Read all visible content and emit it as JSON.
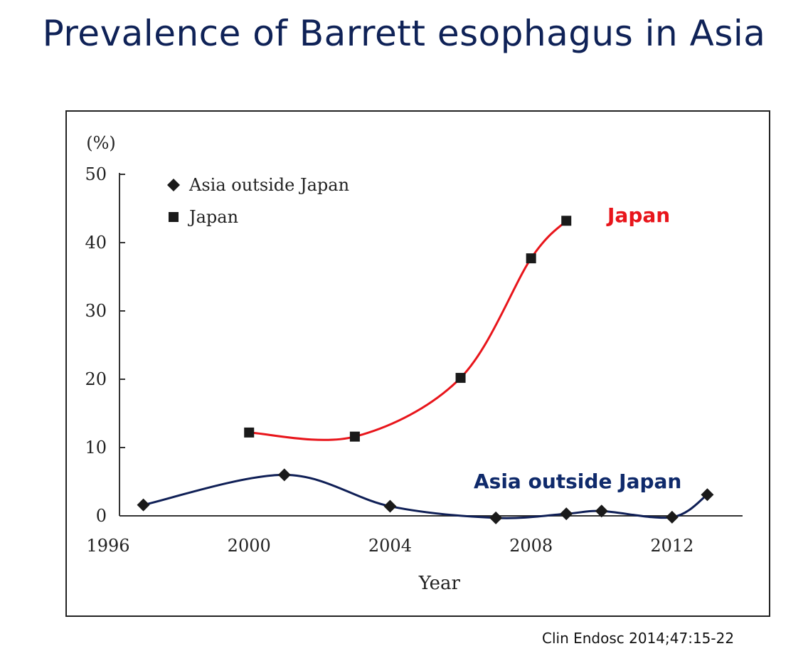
{
  "slide": {
    "title": "Prevalence of Barrett esophagus in Asia",
    "citation": "Clin Endosc 2014;47:15-22"
  },
  "colors": {
    "japan_line": "#e8151b",
    "asia_line": "#0f1f56",
    "label_asia": "#0f2a6b",
    "marker": "#1a1a1a",
    "axis": "#333333"
  },
  "chart_data": {
    "type": "line",
    "title": "",
    "xlabel": "Year",
    "ylabel": "(%)",
    "xlim": [
      1996,
      2014
    ],
    "ylim": [
      0,
      50
    ],
    "x_ticks": [
      1996,
      2000,
      2004,
      2008,
      2012
    ],
    "y_ticks": [
      0,
      10,
      20,
      30,
      40,
      50
    ],
    "legend": {
      "placement": "top-left",
      "entries": [
        {
          "label": "Asia outside Japan",
          "marker": "diamond"
        },
        {
          "label": "Japan",
          "marker": "square"
        }
      ]
    },
    "series": [
      {
        "name": "Japan",
        "marker": "square",
        "color": "#e8151b",
        "points": [
          [
            2000,
            12.2
          ],
          [
            2003,
            11.6
          ],
          [
            2006,
            20.2
          ],
          [
            2008,
            37.7
          ],
          [
            2009,
            43.2
          ]
        ],
        "curve_label": "Japan"
      },
      {
        "name": "Asia outside Japan",
        "marker": "diamond",
        "color": "#0f1f56",
        "points": [
          [
            1997,
            1.6
          ],
          [
            2001,
            6.0
          ],
          [
            2004,
            1.4
          ],
          [
            2007,
            -0.3
          ],
          [
            2009,
            0.3
          ],
          [
            2010,
            0.7
          ],
          [
            2012,
            -0.2
          ],
          [
            2013,
            3.1
          ]
        ],
        "curve_label": "Asia outside Japan"
      }
    ]
  }
}
